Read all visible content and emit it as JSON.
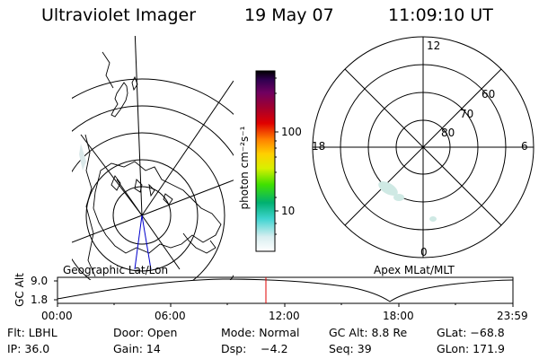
{
  "header": {
    "instrument": "Ultraviolet Imager",
    "date": "19 May 07",
    "time": "11:09:10 UT"
  },
  "colorbar": {
    "unit_label": "photon cm⁻²s⁻¹",
    "tick_100": "100",
    "tick_10": "10"
  },
  "polar_plot": {
    "mlt_labels": {
      "top": "12",
      "left": "18",
      "right": "6",
      "bottom": "0"
    },
    "lat_labels": [
      "60",
      "70",
      "80"
    ]
  },
  "projection_labels": {
    "left": "Geographic Lat/Lon",
    "right": "Apex MLat/MLT"
  },
  "altitude_panel": {
    "ylabel": "GC Alt",
    "y_ticks": [
      "9.0",
      "1.8"
    ],
    "x_ticks": [
      "00:00",
      "06:00",
      "12:00",
      "18:00",
      "23:59"
    ]
  },
  "status": {
    "row1": {
      "flt": "Flt: LBHL",
      "door": "Door: Open",
      "mode": "Mode: Normal",
      "gcalt": "GC Alt: 8.8 Re",
      "glat": "GLat: −68.8"
    },
    "row2": {
      "ip": "IP: 36.0",
      "gain": "Gain: 14",
      "dsp": "Dsp:    −4.2",
      "seq": "Seq: 39",
      "glon": "GLon: 171.9"
    }
  },
  "colors": {
    "marker_line": "#e00000",
    "meridian_line": "#0000cc",
    "aurora_faint": "#cfe9e4"
  }
}
